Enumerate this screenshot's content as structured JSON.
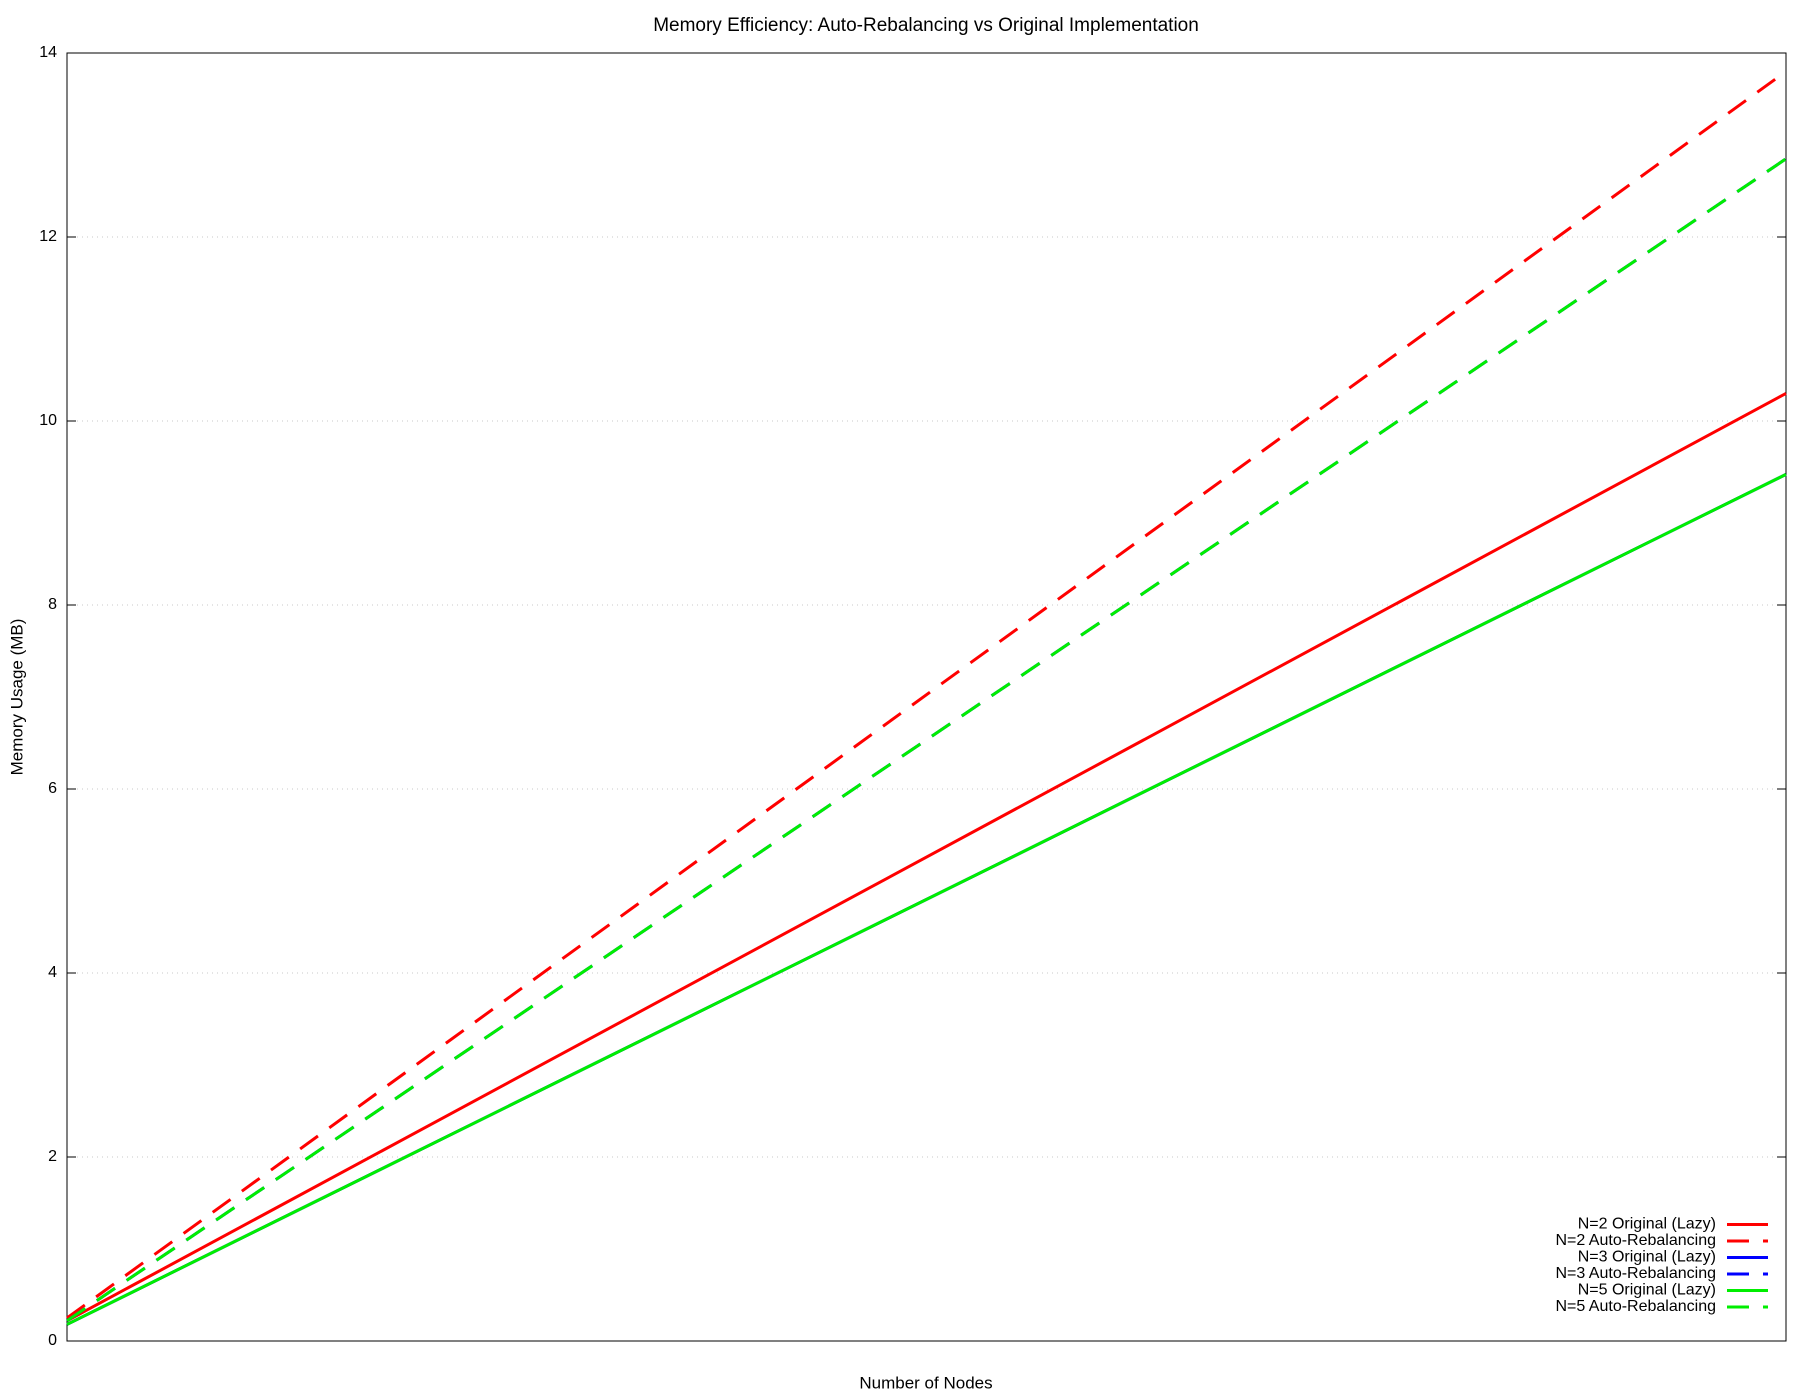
{
  "chart_data": {
    "type": "line",
    "title": "Memory Efficiency: Auto-Rebalancing vs Original Implementation",
    "x_label": "Number of Nodes",
    "y_label": "Memory Usage (MB)",
    "categories": [
      null,
      null
    ],
    "series": [
      {
        "name": "N=2 Original (Lazy)",
        "color": "#ff0000",
        "dashed": false,
        "values": [
          0.22,
          10.3
        ]
      },
      {
        "name": "N=2 Auto-Rebalancing",
        "color": "#ff0000",
        "dashed": true,
        "values": [
          0.25,
          13.8
        ]
      },
      {
        "name": "N=3 Original (Lazy)",
        "color": "#0000ff",
        "dashed": false,
        "values": [
          0.18,
          9.42
        ]
      },
      {
        "name": "N=3 Auto-Rebalancing",
        "color": "#0000ff",
        "dashed": true,
        "values": [
          0.22,
          12.85
        ]
      },
      {
        "name": "N=5 Original (Lazy)",
        "color": "#00ee00",
        "dashed": false,
        "values": [
          0.18,
          9.42
        ]
      },
      {
        "name": "N=5 Auto-Rebalancing",
        "color": "#00ee00",
        "dashed": true,
        "values": [
          0.22,
          12.85
        ]
      }
    ],
    "ylim": [
      0,
      14
    ],
    "yticks": [
      0,
      2,
      4,
      6,
      8,
      10,
      12,
      14
    ],
    "grid": true,
    "legend": "bottom-right"
  }
}
